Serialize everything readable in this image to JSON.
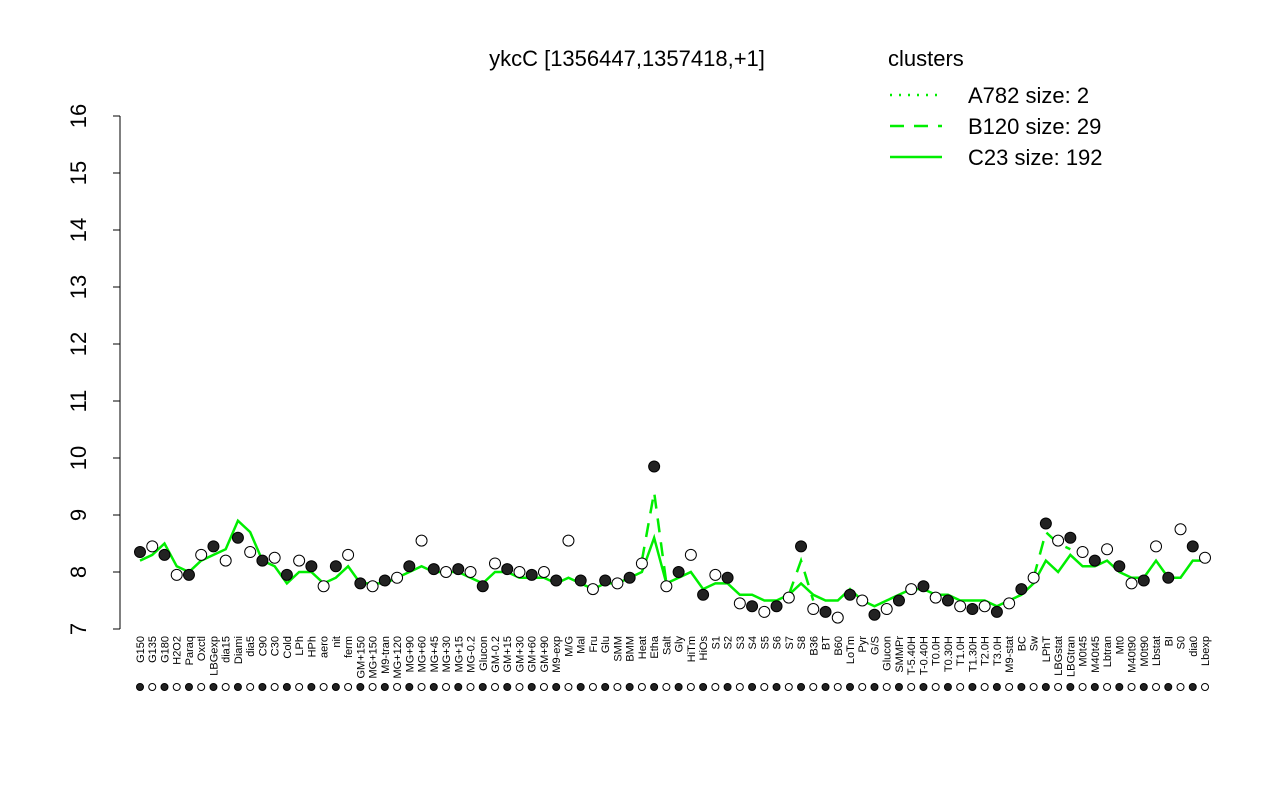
{
  "chart_data": {
    "type": "scatter",
    "title": "ykcC [1356447,1357418,+1]",
    "legend_title": "clusters",
    "legend_color": "#00ee00",
    "point_color": "#000000",
    "categories": [
      "G150",
      "G135",
      "G180",
      "H2O2",
      "Paraq",
      "Oxctl",
      "LBGexp",
      "dia15",
      "Diami",
      "dia5",
      "C90",
      "C30",
      "Cold",
      "LPh",
      "HPh",
      "aero",
      "nit",
      "ferm",
      "GM+150",
      "MG+150",
      "M9-tran",
      "MG+120",
      "MG+90",
      "MG+60",
      "MG+45",
      "MG+30",
      "MG+15",
      "MG-0.2",
      "Glucon",
      "GM-0.2",
      "GM+15",
      "GM+30",
      "GM+60",
      "GM+90",
      "M9-exp",
      "M/G",
      "Mal",
      "Fru",
      "Glu",
      "SMM",
      "BMM",
      "Heat",
      "Etha",
      "Salt",
      "Gly",
      "HiTm",
      "HiOs",
      "S1",
      "S2",
      "S3",
      "S4",
      "S5",
      "S6",
      "S7",
      "S8",
      "B36",
      "BT",
      "B60",
      "LoTm",
      "Pyr",
      "G/S",
      "Glucon",
      "SMMPr",
      "T-5.40H",
      "T-0.40H",
      "T0.0H",
      "T0.30H",
      "T1.0H",
      "T1.30H",
      "T2.0H",
      "T3.0H",
      "M9-stat",
      "BC",
      "Sw",
      "LPhT",
      "LBGstat",
      "LBGtran",
      "M0t45",
      "M40t45",
      "Lbtran",
      "Mt0",
      "M40t90",
      "M0t90",
      "Lbstat",
      "BI",
      "S0",
      "dia0",
      "Lbexp"
    ],
    "values": [
      8.35,
      8.45,
      8.3,
      7.95,
      7.95,
      8.3,
      8.45,
      8.2,
      8.6,
      8.35,
      8.2,
      8.25,
      7.95,
      8.2,
      8.1,
      7.75,
      8.1,
      8.3,
      7.8,
      7.75,
      7.85,
      7.9,
      8.1,
      8.55,
      8.05,
      8.0,
      8.05,
      8.0,
      7.75,
      8.15,
      8.05,
      8.0,
      7.95,
      8.0,
      7.85,
      8.55,
      7.85,
      7.7,
      7.85,
      7.8,
      7.9,
      8.15,
      9.85,
      7.75,
      8.0,
      8.3,
      7.6,
      7.95,
      7.9,
      7.45,
      7.4,
      7.3,
      7.4,
      7.55,
      8.45,
      7.35,
      7.3,
      7.2,
      7.6,
      7.5,
      7.25,
      7.35,
      7.5,
      7.7,
      7.75,
      7.55,
      7.5,
      7.4,
      7.35,
      7.4,
      7.3,
      7.45,
      7.7,
      7.9,
      8.85,
      8.55,
      8.6,
      8.35,
      8.2,
      8.4,
      8.1,
      7.8,
      7.85,
      8.45,
      7.9,
      8.75,
      8.45,
      8.25
    ],
    "series": [
      {
        "name": "A782 size: 2",
        "color": "#00ee00",
        "dash": "dotted",
        "values": [
          null,
          null,
          null,
          null,
          null,
          null,
          null,
          null,
          null,
          null,
          null,
          null,
          null,
          null,
          null,
          null,
          null,
          null,
          null,
          null,
          null,
          null,
          null,
          null,
          null,
          null,
          null,
          null,
          null,
          null,
          null,
          null,
          null,
          null,
          null,
          null,
          null,
          null,
          null,
          null,
          null,
          null,
          null,
          null,
          null,
          null,
          null,
          null,
          null,
          null,
          null,
          null,
          null,
          null,
          null,
          null,
          null,
          null,
          null,
          null,
          null,
          null,
          null,
          null,
          null,
          null,
          null,
          null,
          null,
          null,
          null,
          null,
          null,
          null,
          null,
          null,
          null,
          null,
          null,
          null,
          null,
          null,
          null,
          null,
          null,
          null,
          null,
          null
        ]
      },
      {
        "name": "B120 size: 29",
        "color": "#00ee00",
        "dash": "dashed",
        "values": [
          null,
          null,
          null,
          null,
          null,
          null,
          null,
          null,
          null,
          null,
          null,
          null,
          null,
          null,
          null,
          null,
          null,
          null,
          null,
          null,
          null,
          null,
          null,
          null,
          null,
          null,
          null,
          null,
          null,
          null,
          null,
          null,
          null,
          null,
          null,
          null,
          null,
          null,
          null,
          null,
          null,
          8.2,
          9.4,
          7.8,
          null,
          null,
          null,
          null,
          null,
          null,
          null,
          null,
          null,
          7.6,
          8.2,
          7.5,
          null,
          null,
          null,
          null,
          null,
          null,
          null,
          null,
          null,
          null,
          null,
          null,
          null,
          null,
          null,
          null,
          null,
          7.9,
          8.7,
          8.5,
          8.4,
          null,
          null,
          null,
          null,
          null,
          null,
          null,
          null,
          null,
          null,
          null
        ]
      },
      {
        "name": "C23 size: 192",
        "color": "#00ee00",
        "dash": "solid",
        "values": [
          8.2,
          8.3,
          8.5,
          8.1,
          8.0,
          8.2,
          8.3,
          8.4,
          8.9,
          8.7,
          8.2,
          8.1,
          7.8,
          8.0,
          8.0,
          7.8,
          7.9,
          8.1,
          7.8,
          7.8,
          7.8,
          7.9,
          8.0,
          8.1,
          8.0,
          8.0,
          8.0,
          7.9,
          7.8,
          8.0,
          8.0,
          7.9,
          7.9,
          7.9,
          7.8,
          7.9,
          7.8,
          7.7,
          7.8,
          7.8,
          7.9,
          8.0,
          8.6,
          7.8,
          7.9,
          8.0,
          7.7,
          7.8,
          7.8,
          7.6,
          7.6,
          7.5,
          7.5,
          7.6,
          7.8,
          7.6,
          7.5,
          7.5,
          7.7,
          7.5,
          7.4,
          7.5,
          7.6,
          7.7,
          7.7,
          7.6,
          7.6,
          7.5,
          7.5,
          7.5,
          7.4,
          7.5,
          7.6,
          7.8,
          8.2,
          8.0,
          8.3,
          8.1,
          8.1,
          8.2,
          8.0,
          7.9,
          7.9,
          8.2,
          7.9,
          7.9,
          8.2,
          8.2
        ]
      }
    ],
    "ylim": [
      7,
      16
    ],
    "yticks": [
      7,
      8,
      9,
      10,
      11,
      12,
      13,
      14,
      15,
      16
    ]
  }
}
